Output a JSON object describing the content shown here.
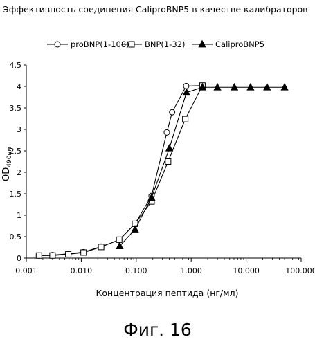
{
  "page": {
    "title": "Эффективность соединения CaliproBNP5 в качестве калибраторов",
    "figure_caption": "Фиг. 16"
  },
  "chart_data": {
    "type": "line",
    "title": "Эффективность соединения CaliproBNP5 в качестве калибраторов",
    "xlabel": "Концентрация пептида (нг/мл)",
    "ylabel_main": "OD",
    "ylabel_sub": "490нм",
    "x_scale": "log",
    "xlim": [
      0.001,
      100
    ],
    "ylim": [
      0,
      4.5
    ],
    "x_ticks": [
      0.001,
      0.01,
      0.1,
      1,
      10,
      100
    ],
    "x_tick_labels": [
      "0.001",
      "0.010",
      "0.100",
      "1.000",
      "10.000",
      "100.000"
    ],
    "y_ticks": [
      0,
      0.5,
      1,
      1.5,
      2,
      2.5,
      3,
      3.5,
      4,
      4.5
    ],
    "y_tick_labels": [
      "0",
      "0.5",
      "1",
      "1.5",
      "2",
      "2.5",
      "3",
      "3.5",
      "4",
      "4.5"
    ],
    "grid": false,
    "legend_position": "top",
    "series": [
      {
        "name": "proBNP(1-108)",
        "marker": "circle",
        "x": [
          0.0017,
          0.003,
          0.0058,
          0.011,
          0.023,
          0.049,
          0.095,
          0.19,
          0.36,
          0.45,
          0.81,
          1.6
        ],
        "y": [
          0.06,
          0.07,
          0.1,
          0.14,
          0.27,
          0.42,
          0.8,
          1.45,
          2.93,
          3.4,
          4.01,
          4.02
        ]
      },
      {
        "name": "BNP(1-32)",
        "marker": "square",
        "x": [
          0.0017,
          0.003,
          0.0058,
          0.011,
          0.023,
          0.049,
          0.095,
          0.19,
          0.38,
          0.78,
          1.6
        ],
        "y": [
          0.06,
          0.06,
          0.09,
          0.13,
          0.26,
          0.43,
          0.8,
          1.32,
          2.25,
          3.24,
          4.02
        ]
      },
      {
        "name": "CaliproBNP5",
        "marker": "triangle",
        "x": [
          0.05,
          0.095,
          0.19,
          0.4,
          0.82,
          1.6,
          3.0,
          6.1,
          12.0,
          24.0,
          50.0
        ],
        "y": [
          0.28,
          0.67,
          1.41,
          2.56,
          3.86,
          3.98,
          3.98,
          3.98,
          3.98,
          3.98,
          3.98
        ]
      }
    ]
  }
}
